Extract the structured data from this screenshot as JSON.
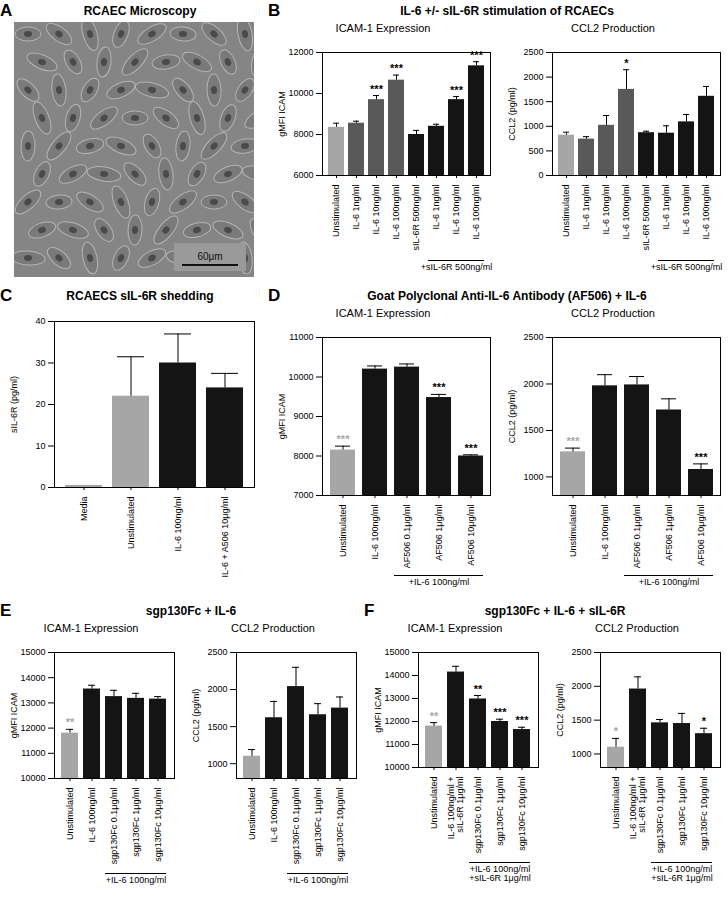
{
  "panels": [
    {
      "label": "A",
      "title": "RCAEC Microscopy",
      "type": "image",
      "scale_bar": "60μm"
    },
    {
      "label": "B",
      "title": "IL-6 +/- sIL-6R stimulation of RCAECs"
    },
    {
      "label": "C",
      "title": "RCAECS sIL-6R shedding"
    },
    {
      "label": "D",
      "title": "Goat Polyclonal Anti-IL-6 Antibody (AF506) + IL-6"
    },
    {
      "label": "E",
      "title": "sgp130Fc + IL-6"
    },
    {
      "label": "F",
      "title": "sgp130Fc + IL-6 + sIL-6R"
    }
  ],
  "chart_data": [
    {
      "panel": "B",
      "type": "bar",
      "title": "ICAM-1 Expression",
      "y_label": "gMFI ICAM",
      "categories": [
        "Unstimulated",
        "IL-6 1ng/ml",
        "IL-6 10ng/ml",
        "IL-6 100ng/ml",
        "sIL-6R 500ng/ml",
        "IL-6 1ng/ml",
        "IL-6 10ng/ml",
        "IL-6 100ng/ml"
      ],
      "values": [
        8350,
        8550,
        9700,
        10650,
        8000,
        8400,
        9700,
        11350
      ],
      "errors": [
        200,
        100,
        200,
        250,
        200,
        100,
        150,
        200
      ],
      "significance": [
        null,
        null,
        "***",
        "***",
        null,
        null,
        "***",
        "***"
      ],
      "significance_colors": [
        null,
        null,
        "#000000",
        "#000000",
        null,
        null,
        "#000000",
        "#000000"
      ],
      "colors": [
        "#a6a6a6",
        "#595959",
        "#595959",
        "#595959",
        "#141414",
        "#141414",
        "#141414",
        "#141414"
      ],
      "ylim": [
        6000,
        12000
      ],
      "yticks": [
        6000,
        8000,
        10000,
        12000
      ],
      "bracket": {
        "text": "+sIL-6R 500ng/ml",
        "first": 5,
        "last": 7
      }
    },
    {
      "panel": "B",
      "type": "bar",
      "title": "CCL2 Production",
      "y_label": "CCL2 (pg/ml)",
      "categories": [
        "Unstimulated",
        "IL-6 1ng/ml",
        "IL-6 10ng/ml",
        "IL-6 100ng/ml",
        "sIL-6R 500ng/ml",
        "IL-6 1ng/ml",
        "IL-6 10ng/ml",
        "IL-6 100ng/ml"
      ],
      "values": [
        820,
        740,
        1020,
        1750,
        870,
        860,
        1090,
        1610
      ],
      "errors": [
        60,
        50,
        200,
        400,
        30,
        150,
        150,
        200
      ],
      "significance": [
        null,
        null,
        null,
        "*",
        null,
        null,
        null,
        null
      ],
      "significance_colors": [
        null,
        null,
        null,
        "#000000",
        null,
        null,
        null,
        null
      ],
      "colors": [
        "#a6a6a6",
        "#595959",
        "#595959",
        "#595959",
        "#141414",
        "#141414",
        "#141414",
        "#141414"
      ],
      "ylim": [
        0,
        2500
      ],
      "yticks": [
        0,
        500,
        1000,
        1500,
        2000,
        2500
      ],
      "bracket": {
        "text": "+sIL-6R 500ng/ml",
        "first": 5,
        "last": 7
      }
    },
    {
      "panel": "C",
      "type": "bar",
      "y_label": "sIL-6R (pg/ml)",
      "categories": [
        "Media",
        "Unstimulated",
        "IL-6 100ng/ml",
        "IL-6 + A506 10μg/ml"
      ],
      "values": [
        0.5,
        22,
        30,
        24
      ],
      "errors": [
        0,
        9.5,
        7,
        3.5
      ],
      "colors": [
        "#a6a6a6",
        "#a6a6a6",
        "#141414",
        "#141414"
      ],
      "ylim": [
        0,
        40
      ],
      "yticks": [
        0,
        10,
        20,
        30,
        40
      ]
    },
    {
      "panel": "D",
      "type": "bar",
      "title": "ICAM-1 Expression",
      "y_label": "gMFI ICAM",
      "categories": [
        "Unstimulated",
        "IL-6 100ng/ml",
        "AF506 0.1μg/ml",
        "AF506 1μg/ml",
        "AF506 10μg/ml"
      ],
      "values": [
        8150,
        10200,
        10250,
        9480,
        8000
      ],
      "errors": [
        100,
        80,
        80,
        80,
        30
      ],
      "significance": [
        "***",
        null,
        null,
        "***",
        "***"
      ],
      "significance_colors": [
        "#a6a6a6",
        null,
        null,
        "#000000",
        "#000000"
      ],
      "colors": [
        "#a6a6a6",
        "#141414",
        "#141414",
        "#141414",
        "#141414"
      ],
      "ylim": [
        7000,
        11000
      ],
      "yticks": [
        7000,
        8000,
        9000,
        10000,
        11000
      ],
      "bracket": {
        "text": "+IL-6 100ng/ml",
        "first": 2,
        "last": 4
      }
    },
    {
      "panel": "D",
      "type": "bar",
      "title": "CCL2 Production",
      "y_label": "CCL2 (pg/ml)",
      "categories": [
        "Unstimulated",
        "IL-6 100ng/ml",
        "AF506 0.1μg/ml",
        "AF506 1μg/ml",
        "AF506 10μg/ml"
      ],
      "values": [
        1270,
        1980,
        1990,
        1720,
        1080
      ],
      "errors": [
        40,
        120,
        90,
        120,
        60
      ],
      "significance": [
        "***",
        null,
        null,
        null,
        "***"
      ],
      "significance_colors": [
        "#a6a6a6",
        null,
        null,
        null,
        "#000000"
      ],
      "colors": [
        "#a6a6a6",
        "#141414",
        "#141414",
        "#141414",
        "#141414"
      ],
      "ylim": [
        800,
        2500
      ],
      "yticks": [
        1000,
        1500,
        2000,
        2500
      ],
      "bracket": {
        "text": "+IL-6 100ng/ml",
        "first": 2,
        "last": 4
      }
    },
    {
      "panel": "E",
      "type": "bar",
      "title": "ICAM-1 Expression",
      "y_label": "gMFI ICAM",
      "categories": [
        "Unstimulated",
        "IL-6 100ng/ml",
        "sgp130Fc 0.1μg/ml",
        "sgp130Fc 1μg/ml",
        "sgp130Fc 10μg/ml"
      ],
      "values": [
        11800,
        13550,
        13250,
        13180,
        13150
      ],
      "errors": [
        150,
        150,
        250,
        200,
        100
      ],
      "significance": [
        "**",
        null,
        null,
        null,
        null
      ],
      "significance_colors": [
        "#a6a6a6",
        null,
        null,
        null,
        null
      ],
      "colors": [
        "#a6a6a6",
        "#141414",
        "#141414",
        "#141414",
        "#141414"
      ],
      "ylim": [
        10000,
        15000
      ],
      "yticks": [
        10000,
        11000,
        12000,
        13000,
        14000,
        15000
      ],
      "bracket": {
        "text": "+IL-6 100ng/ml",
        "first": 2,
        "last": 4
      }
    },
    {
      "panel": "E",
      "type": "bar",
      "title": "CCL2 Production",
      "y_label": "CCL2 (pg/ml)",
      "categories": [
        "Unstimulated",
        "IL-6 100ng/ml",
        "sgp130Fc 0.1μg/ml",
        "sgp130Fc 1μg/ml",
        "sgp130Fc 10μg/ml"
      ],
      "values": [
        1100,
        1620,
        2040,
        1660,
        1750
      ],
      "errors": [
        90,
        220,
        260,
        150,
        150
      ],
      "colors": [
        "#a6a6a6",
        "#141414",
        "#141414",
        "#141414",
        "#141414"
      ],
      "ylim": [
        800,
        2500
      ],
      "yticks": [
        1000,
        1500,
        2000,
        2500
      ],
      "bracket": {
        "text": "+IL-6 100ng/ml",
        "first": 2,
        "last": 4
      }
    },
    {
      "panel": "F",
      "type": "bar",
      "title": "ICAM-1 Expression",
      "y_label": "gMFI ICAM",
      "categories": [
        "Unstimulated",
        "IL-6 100ng/ml + sIL-6R 1μg/ml",
        "sgp130Fc 0.1μg/ml",
        "sgp130Fc 1μg/ml",
        "sgp130Fc 10μg/ml"
      ],
      "values": [
        11800,
        14150,
        12980,
        12000,
        11650
      ],
      "errors": [
        150,
        250,
        150,
        100,
        100
      ],
      "significance": [
        "**",
        null,
        "**",
        "***",
        "***"
      ],
      "significance_colors": [
        "#a6a6a6",
        null,
        "#000000",
        "#000000",
        "#000000"
      ],
      "colors": [
        "#a6a6a6",
        "#141414",
        "#141414",
        "#141414",
        "#141414"
      ],
      "ylim": [
        10000,
        15000
      ],
      "yticks": [
        10000,
        11000,
        12000,
        13000,
        14000,
        15000
      ],
      "bracket": {
        "text": "+IL-6 100ng/ml\n+sIL-6R 1μg/ml",
        "first": 2,
        "last": 4
      }
    },
    {
      "panel": "F",
      "type": "bar",
      "title": "CCL2 Production",
      "y_label": "CCL2 (pg/ml)",
      "categories": [
        "Unstimulated",
        "IL-6 100ng/ml + sIL-6R 1μg/ml",
        "sgp130Fc 0.1μg/ml",
        "sgp130Fc 1μg/ml",
        "sgp130Fc 10μg/ml"
      ],
      "values": [
        1100,
        1960,
        1460,
        1450,
        1300
      ],
      "errors": [
        130,
        180,
        50,
        150,
        80
      ],
      "significance": [
        "*",
        null,
        null,
        null,
        "*"
      ],
      "significance_colors": [
        "#a6a6a6",
        null,
        null,
        null,
        "#000000"
      ],
      "colors": [
        "#a6a6a6",
        "#141414",
        "#141414",
        "#141414",
        "#141414"
      ],
      "ylim": [
        800,
        2500
      ],
      "yticks": [
        1000,
        1500,
        2000,
        2500
      ],
      "bracket": {
        "text": "+IL-6 100ng/ml\n+sIL-6R 1μg/ml",
        "first": 2,
        "last": 4
      }
    }
  ]
}
